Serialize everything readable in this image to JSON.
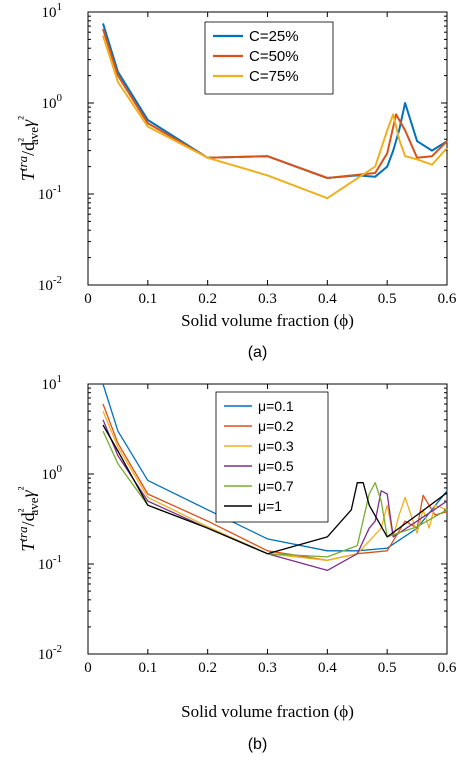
{
  "chart_data": [
    {
      "type": "line",
      "panel_label": "(a)",
      "xlabel": "Solid volume fraction (ϕ)",
      "ylabel": "T^tra/d²aveγ²",
      "yscale": "log",
      "xlim": [
        0,
        0.6
      ],
      "ylim": [
        0.01,
        10
      ],
      "x_ticks": [
        "0",
        "0.1",
        "0.2",
        "0.3",
        "0.4",
        "0.5",
        "0.6"
      ],
      "y_ticks": [
        "10-2",
        "10-1",
        "100",
        "101"
      ],
      "legend_position": "top-center",
      "series": [
        {
          "name": "C=25%",
          "color": "#0072BD",
          "x": [
            0.025,
            0.05,
            0.1,
            0.2,
            0.3,
            0.4,
            0.45,
            0.48,
            0.5,
            0.51,
            0.52,
            0.53,
            0.55,
            0.575,
            0.6
          ],
          "y": [
            7.5,
            2.2,
            0.65,
            0.25,
            0.26,
            0.15,
            0.16,
            0.155,
            0.2,
            0.3,
            0.5,
            1.0,
            0.38,
            0.3,
            0.38
          ]
        },
        {
          "name": "C=50%",
          "color": "#D95319",
          "x": [
            0.025,
            0.05,
            0.1,
            0.2,
            0.3,
            0.4,
            0.48,
            0.5,
            0.515,
            0.53,
            0.55,
            0.575,
            0.6
          ],
          "y": [
            6.5,
            2.0,
            0.6,
            0.25,
            0.26,
            0.15,
            0.17,
            0.28,
            0.75,
            0.5,
            0.25,
            0.26,
            0.38
          ]
        },
        {
          "name": "C=75%",
          "color": "#EDB120",
          "x": [
            0.025,
            0.05,
            0.1,
            0.2,
            0.3,
            0.4,
            0.48,
            0.5,
            0.51,
            0.52,
            0.53,
            0.55,
            0.575,
            0.6
          ],
          "y": [
            5.5,
            1.7,
            0.55,
            0.25,
            0.16,
            0.09,
            0.2,
            0.5,
            0.75,
            0.4,
            0.26,
            0.24,
            0.21,
            0.32
          ]
        }
      ]
    },
    {
      "type": "line",
      "panel_label": "(b)",
      "xlabel": "Solid volume fraction (ϕ)",
      "ylabel": "T^tra/d²aveγ²",
      "yscale": "log",
      "xlim": [
        0,
        0.6
      ],
      "ylim": [
        0.01,
        10
      ],
      "x_ticks": [
        "0",
        "0.1",
        "0.2",
        "0.3",
        "0.4",
        "0.5",
        "0.6"
      ],
      "y_ticks": [
        "10-2",
        "10-1",
        "100",
        "101"
      ],
      "legend_position": "top-center",
      "series": [
        {
          "name": "μ=0.1",
          "color": "#0072BD",
          "x": [
            0.025,
            0.05,
            0.1,
            0.2,
            0.3,
            0.4,
            0.45,
            0.5,
            0.55,
            0.6
          ],
          "y": [
            10,
            3.0,
            0.85,
            0.4,
            0.19,
            0.14,
            0.14,
            0.15,
            0.25,
            0.65
          ]
        },
        {
          "name": "μ=0.2",
          "color": "#D95319",
          "x": [
            0.025,
            0.05,
            0.1,
            0.2,
            0.3,
            0.4,
            0.45,
            0.5,
            0.53,
            0.55,
            0.56,
            0.58,
            0.6
          ],
          "y": [
            6.0,
            2.2,
            0.6,
            0.3,
            0.14,
            0.11,
            0.13,
            0.14,
            0.3,
            0.25,
            0.58,
            0.35,
            0.38
          ]
        },
        {
          "name": "μ=0.3",
          "color": "#EDB120",
          "x": [
            0.025,
            0.05,
            0.1,
            0.2,
            0.3,
            0.4,
            0.45,
            0.49,
            0.5,
            0.51,
            0.52,
            0.53,
            0.55,
            0.56,
            0.57,
            0.58,
            0.6
          ],
          "y": [
            5.0,
            2.0,
            0.55,
            0.26,
            0.13,
            0.11,
            0.13,
            0.25,
            0.45,
            0.2,
            0.35,
            0.55,
            0.22,
            0.4,
            0.25,
            0.45,
            0.4
          ]
        },
        {
          "name": "μ=0.5",
          "color": "#7E2F8E",
          "x": [
            0.025,
            0.05,
            0.1,
            0.2,
            0.3,
            0.4,
            0.45,
            0.47,
            0.48,
            0.49,
            0.5,
            0.51,
            0.55,
            0.6
          ],
          "y": [
            4.0,
            1.6,
            0.5,
            0.25,
            0.13,
            0.085,
            0.13,
            0.25,
            0.3,
            0.65,
            0.6,
            0.2,
            0.3,
            0.5
          ]
        },
        {
          "name": "μ=0.7",
          "color": "#77AC30",
          "x": [
            0.025,
            0.05,
            0.1,
            0.2,
            0.3,
            0.4,
            0.45,
            0.47,
            0.48,
            0.49,
            0.5,
            0.55,
            0.6
          ],
          "y": [
            3.0,
            1.3,
            0.45,
            0.25,
            0.13,
            0.12,
            0.16,
            0.6,
            0.8,
            0.5,
            0.2,
            0.26,
            0.4
          ]
        },
        {
          "name": "μ=1",
          "color": "#000000",
          "x": [
            0.025,
            0.05,
            0.1,
            0.2,
            0.3,
            0.4,
            0.44,
            0.45,
            0.46,
            0.47,
            0.5,
            0.55,
            0.6
          ],
          "y": [
            3.5,
            1.8,
            0.45,
            0.25,
            0.13,
            0.2,
            0.4,
            0.8,
            0.8,
            0.45,
            0.2,
            0.35,
            0.62
          ]
        }
      ]
    }
  ]
}
